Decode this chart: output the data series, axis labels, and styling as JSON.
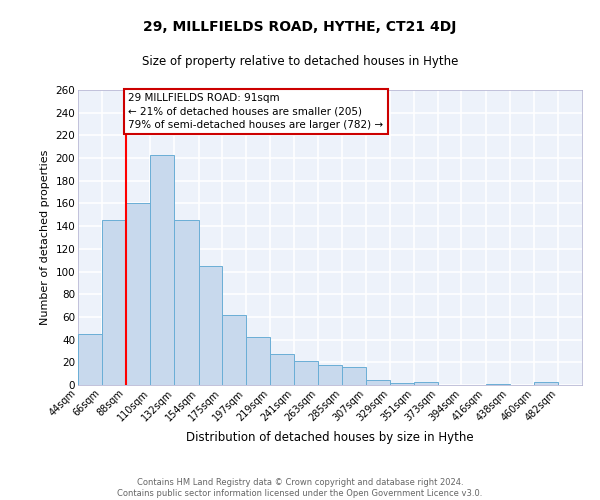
{
  "title": "29, MILLFIELDS ROAD, HYTHE, CT21 4DJ",
  "subtitle": "Size of property relative to detached houses in Hythe",
  "xlabel": "Distribution of detached houses by size in Hythe",
  "ylabel": "Number of detached properties",
  "bar_labels": [
    "44sqm",
    "66sqm",
    "88sqm",
    "110sqm",
    "132sqm",
    "154sqm",
    "175sqm",
    "197sqm",
    "219sqm",
    "241sqm",
    "263sqm",
    "285sqm",
    "307sqm",
    "329sqm",
    "351sqm",
    "373sqm",
    "394sqm",
    "416sqm",
    "438sqm",
    "460sqm",
    "482sqm"
  ],
  "bar_values": [
    45,
    145,
    160,
    203,
    145,
    105,
    62,
    42,
    27,
    21,
    18,
    16,
    4,
    2,
    3,
    0,
    0,
    1,
    0,
    3,
    0
  ],
  "bar_color": "#c8d9ed",
  "bar_edge_color": "#6aaed6",
  "bg_color": "#edf2fa",
  "grid_color": "#ffffff",
  "annotation_text": "29 MILLFIELDS ROAD: 91sqm\n← 21% of detached houses are smaller (205)\n79% of semi-detached houses are larger (782) →",
  "annotation_box_color": "#ffffff",
  "annotation_box_edge": "#cc0000",
  "red_line_x": 88,
  "ylim": [
    0,
    260
  ],
  "yticks": [
    0,
    20,
    40,
    60,
    80,
    100,
    120,
    140,
    160,
    180,
    200,
    220,
    240,
    260
  ],
  "footer_line1": "Contains HM Land Registry data © Crown copyright and database right 2024.",
  "footer_line2": "Contains public sector information licensed under the Open Government Licence v3.0.",
  "bin_edges": [
    44,
    66,
    88,
    110,
    132,
    154,
    175,
    197,
    219,
    241,
    263,
    285,
    307,
    329,
    351,
    373,
    394,
    416,
    438,
    460,
    482,
    504
  ]
}
